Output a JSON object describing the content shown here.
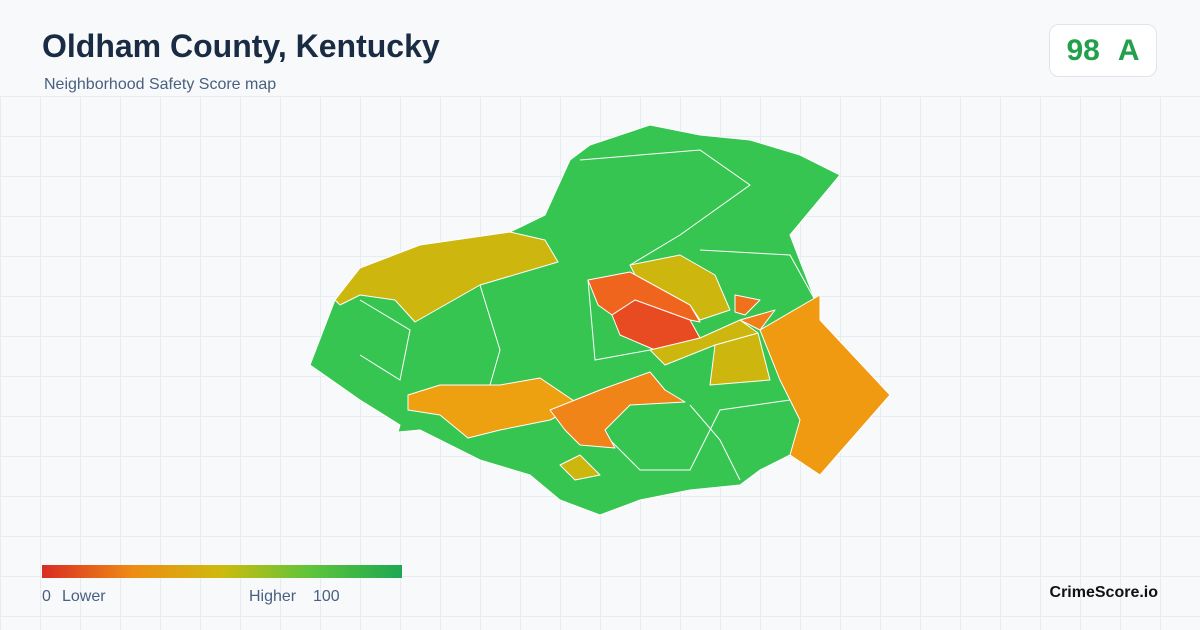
{
  "header": {
    "title": "Oldham County, Kentucky",
    "subtitle": "Neighborhood Safety Score map"
  },
  "score": {
    "value": 98,
    "grade": "A"
  },
  "legend": {
    "min": 0,
    "min_label": "Lower",
    "max_label": "Higher",
    "max": 100
  },
  "footer": {
    "brand": "CrimeScore.io"
  }
}
